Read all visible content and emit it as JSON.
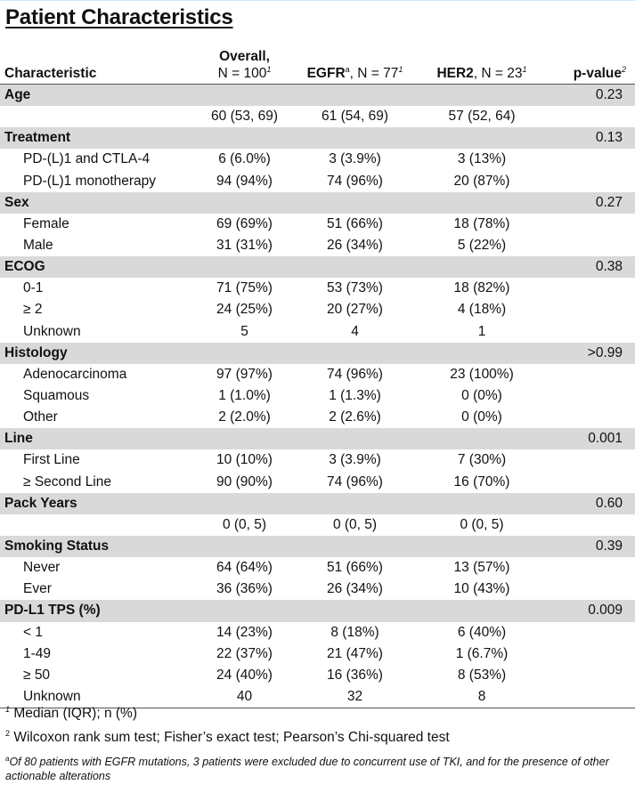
{
  "title": "Patient Characteristics",
  "header": {
    "characteristic": "Characteristic",
    "overall_name": "Overall,",
    "overall_n": "N = 100",
    "overall_sup": "1",
    "egfr_name": "EGFR",
    "egfr_sup_a": "a",
    "egfr_n": ", N = 77",
    "egfr_sup": "1",
    "her2_name": "HER2",
    "her2_n": ", N = 23",
    "her2_sup": "1",
    "pvalue": "p-value",
    "pvalue_sup": "2"
  },
  "rows": [
    {
      "type": "group",
      "label": "Age",
      "overall": "",
      "egfr": "",
      "her2": "",
      "p": "0.23"
    },
    {
      "type": "sub",
      "label": "",
      "overall": "60 (53, 69)",
      "egfr": "61 (54, 69)",
      "her2": "57 (52, 64)",
      "p": ""
    },
    {
      "type": "group",
      "label": "Treatment",
      "overall": "",
      "egfr": "",
      "her2": "",
      "p": "0.13"
    },
    {
      "type": "sub",
      "label": "PD-(L)1 and CTLA-4",
      "overall": "6 (6.0%)",
      "egfr": "3 (3.9%)",
      "her2": "3 (13%)",
      "p": ""
    },
    {
      "type": "sub",
      "label": "PD-(L)1 monotherapy",
      "overall": "94 (94%)",
      "egfr": "74 (96%)",
      "her2": "20 (87%)",
      "p": ""
    },
    {
      "type": "group",
      "label": "Sex",
      "overall": "",
      "egfr": "",
      "her2": "",
      "p": "0.27"
    },
    {
      "type": "sub",
      "label": "Female",
      "overall": "69 (69%)",
      "egfr": "51 (66%)",
      "her2": "18 (78%)",
      "p": ""
    },
    {
      "type": "sub",
      "label": "Male",
      "overall": "31 (31%)",
      "egfr": "26 (34%)",
      "her2": "5 (22%)",
      "p": ""
    },
    {
      "type": "group",
      "label": "ECOG",
      "overall": "",
      "egfr": "",
      "her2": "",
      "p": "0.38"
    },
    {
      "type": "sub",
      "label": "0-1",
      "overall": "71 (75%)",
      "egfr": "53 (73%)",
      "her2": "18 (82%)",
      "p": ""
    },
    {
      "type": "sub",
      "label": "≥ 2",
      "overall": "24 (25%)",
      "egfr": "20 (27%)",
      "her2": "4 (18%)",
      "p": ""
    },
    {
      "type": "sub",
      "label": "Unknown",
      "overall": "5",
      "egfr": "4",
      "her2": "1",
      "p": ""
    },
    {
      "type": "group",
      "label": "Histology",
      "overall": "",
      "egfr": "",
      "her2": "",
      "p": ">0.99"
    },
    {
      "type": "sub",
      "label": "Adenocarcinoma",
      "overall": "97 (97%)",
      "egfr": "74 (96%)",
      "her2": "23 (100%)",
      "p": ""
    },
    {
      "type": "sub",
      "label": "Squamous",
      "overall": "1 (1.0%)",
      "egfr": "1 (1.3%)",
      "her2": "0 (0%)",
      "p": ""
    },
    {
      "type": "sub",
      "label": "Other",
      "overall": "2 (2.0%)",
      "egfr": "2 (2.6%)",
      "her2": "0 (0%)",
      "p": ""
    },
    {
      "type": "group",
      "label": "Line",
      "overall": "",
      "egfr": "",
      "her2": "",
      "p": "0.001"
    },
    {
      "type": "sub",
      "label": "First Line",
      "overall": "10 (10%)",
      "egfr": "3 (3.9%)",
      "her2": "7 (30%)",
      "p": ""
    },
    {
      "type": "sub",
      "label": "≥ Second Line",
      "overall": "90 (90%)",
      "egfr": "74 (96%)",
      "her2": "16 (70%)",
      "p": ""
    },
    {
      "type": "group",
      "label": "Pack Years",
      "overall": "",
      "egfr": "",
      "her2": "",
      "p": "0.60"
    },
    {
      "type": "sub",
      "label": "",
      "overall": "0 (0, 5)",
      "egfr": "0 (0, 5)",
      "her2": "0 (0, 5)",
      "p": ""
    },
    {
      "type": "group",
      "label": "Smoking Status",
      "overall": "",
      "egfr": "",
      "her2": "",
      "p": "0.39"
    },
    {
      "type": "sub",
      "label": "Never",
      "overall": "64 (64%)",
      "egfr": "51 (66%)",
      "her2": "13 (57%)",
      "p": ""
    },
    {
      "type": "sub",
      "label": "Ever",
      "overall": "36 (36%)",
      "egfr": "26 (34%)",
      "her2": "10 (43%)",
      "p": ""
    },
    {
      "type": "group",
      "label": "PD-L1 TPS (%)",
      "overall": "",
      "egfr": "",
      "her2": "",
      "p": "0.009"
    },
    {
      "type": "sub",
      "label": "< 1",
      "overall": "14 (23%)",
      "egfr": "8 (18%)",
      "her2": "6 (40%)",
      "p": ""
    },
    {
      "type": "sub",
      "label": "1-49",
      "overall": "22 (37%)",
      "egfr": "21 (47%)",
      "her2": "1 (6.7%)",
      "p": ""
    },
    {
      "type": "sub",
      "label": "≥ 50",
      "overall": "24 (40%)",
      "egfr": "16 (36%)",
      "her2": "8 (53%)",
      "p": ""
    },
    {
      "type": "sub",
      "label": "Unknown",
      "overall": "40",
      "egfr": "32",
      "her2": "8",
      "p": ""
    }
  ],
  "footnotes": {
    "fn1_mark": "1",
    "fn1_text": " Median (IQR); n (%)",
    "fn2_mark": "2",
    "fn2_text": " Wilcoxon rank sum test; Fisher’s exact test; Pearson’s Chi-squared test",
    "fn3_mark": "a",
    "fn3_text": "Of 80 patients with EGFR mutations, 3 patients were excluded due to concurrent use of TKI, and for the presence of other actionable alterations"
  }
}
